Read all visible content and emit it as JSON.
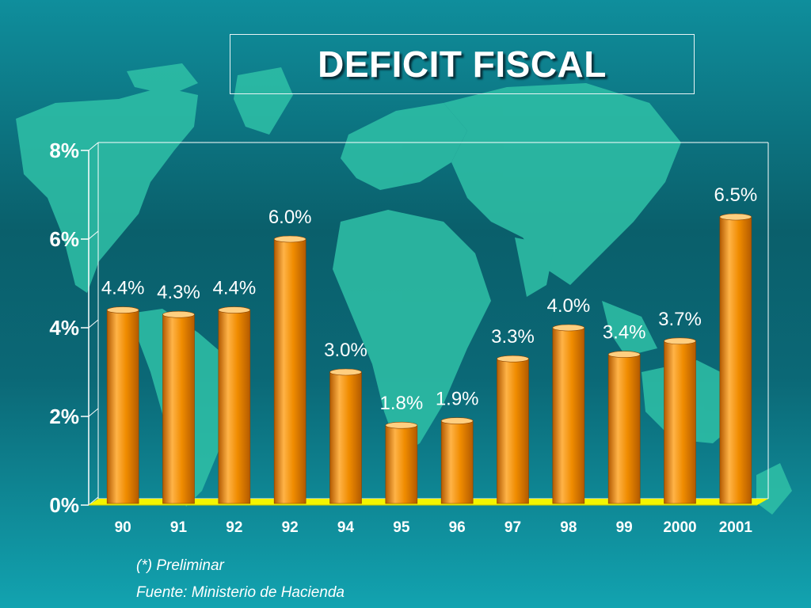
{
  "title": "DEFICIT FISCAL",
  "footnotes": {
    "preliminar": "(*) Preliminar",
    "source": "Fuente: Ministerio de Hacienda"
  },
  "colors": {
    "bar": "#f08c00",
    "bar_highlight": "#ffb347",
    "bar_shadow": "#b35a00",
    "floor": "#f5f500",
    "axis": "#ffffff",
    "label": "#ffffff",
    "map": "#2fc1a7"
  },
  "chart_data": {
    "type": "bar",
    "title": "DEFICIT FISCAL",
    "xlabel": "",
    "ylabel": "",
    "categories": [
      "90",
      "91",
      "92",
      "92",
      "94",
      "95",
      "96",
      "97",
      "98",
      "99",
      "2000",
      "2001"
    ],
    "values": [
      4.4,
      4.3,
      4.4,
      6.0,
      3.0,
      1.8,
      1.9,
      3.3,
      4.0,
      3.4,
      3.7,
      6.5
    ],
    "data_labels": [
      "4.4%",
      "4.3%",
      "4.4%",
      "6.0%",
      "3.0%",
      "1.8%",
      "1.9%",
      "3.3%",
      "4.0%",
      "3.4%",
      "3.7%",
      "6.5%"
    ],
    "ylim": [
      0,
      8
    ],
    "yticks": [
      0,
      2,
      4,
      6,
      8
    ],
    "ytick_labels": [
      "0%",
      "2%",
      "4%",
      "6%",
      "8%"
    ],
    "grid": false,
    "legend": "none"
  }
}
